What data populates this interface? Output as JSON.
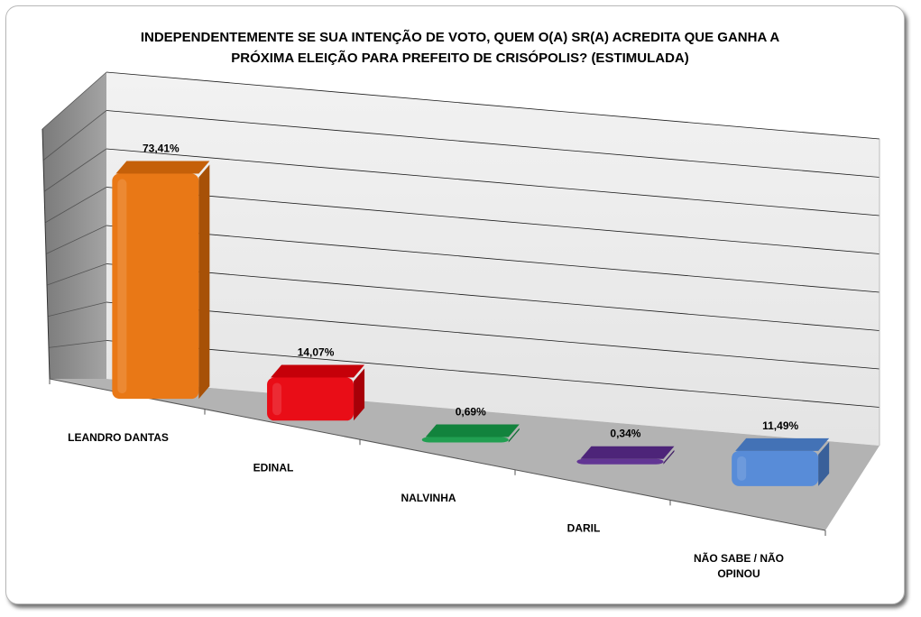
{
  "chart_data": {
    "type": "bar",
    "title": "INDEPENDENTEMENTE SE SUA INTENÇÃO DE VOTO, QUEM O(A) SR(A) ACREDITA QUE GANHA A\nPRÓXIMA ELEIÇÃO PARA PREFEITO DE CRISÓPOLIS? (ESTIMULADA)",
    "categories": [
      "LEANDRO DANTAS",
      "EDINAL",
      "NALVINHA",
      "DARIL",
      "NÃO SABE / NÃO OPINOU"
    ],
    "values": [
      73.41,
      14.07,
      0.69,
      0.34,
      11.49
    ],
    "data_labels": [
      "73,41%",
      "14,07%",
      "0,69%",
      "0,34%",
      "11,49%"
    ],
    "colors": [
      "#e8710a",
      "#e8000b",
      "#159a48",
      "#5a2a8e",
      "#4f86d6"
    ],
    "ylim": [
      0,
      80
    ],
    "grid": true,
    "style": "3d-column",
    "xlabel": "",
    "ylabel": ""
  }
}
